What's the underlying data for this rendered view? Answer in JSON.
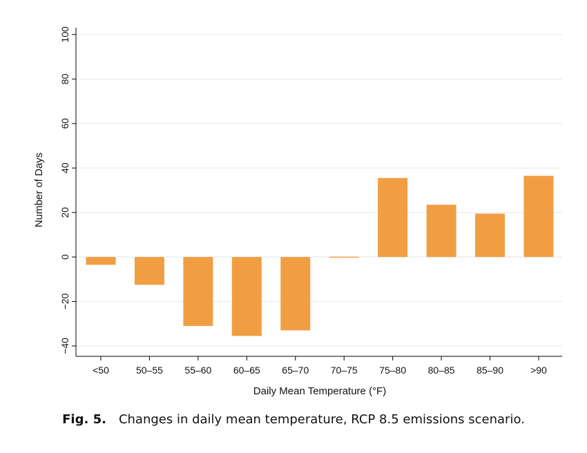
{
  "chart_data": {
    "type": "bar",
    "categories": [
      "<50",
      "50–55",
      "55–60",
      "60–65",
      "65–70",
      "70–75",
      "75–80",
      "80–85",
      "85–90",
      ">90"
    ],
    "values": [
      -3.5,
      -12.5,
      -31,
      -35.5,
      -33,
      -0.2,
      35.5,
      23.5,
      19.5,
      36.5
    ],
    "xlabel": "Daily Mean Temperature (°F)",
    "ylabel": "Number of Days",
    "ylim": [
      -40,
      100
    ],
    "yticks": [
      100,
      80,
      60,
      40,
      20,
      0,
      -20,
      -40
    ],
    "ytick_labels": [
      "100",
      "80",
      "60",
      "40",
      "20",
      "0",
      "−20",
      "−40"
    ],
    "grid": true,
    "bar_color": "#f19e43",
    "gridline_color": "#dde8ee"
  },
  "caption": {
    "label": "Fig. 5.",
    "text": "Changes in daily mean temperature, RCP 8.5 emissions scenario."
  }
}
